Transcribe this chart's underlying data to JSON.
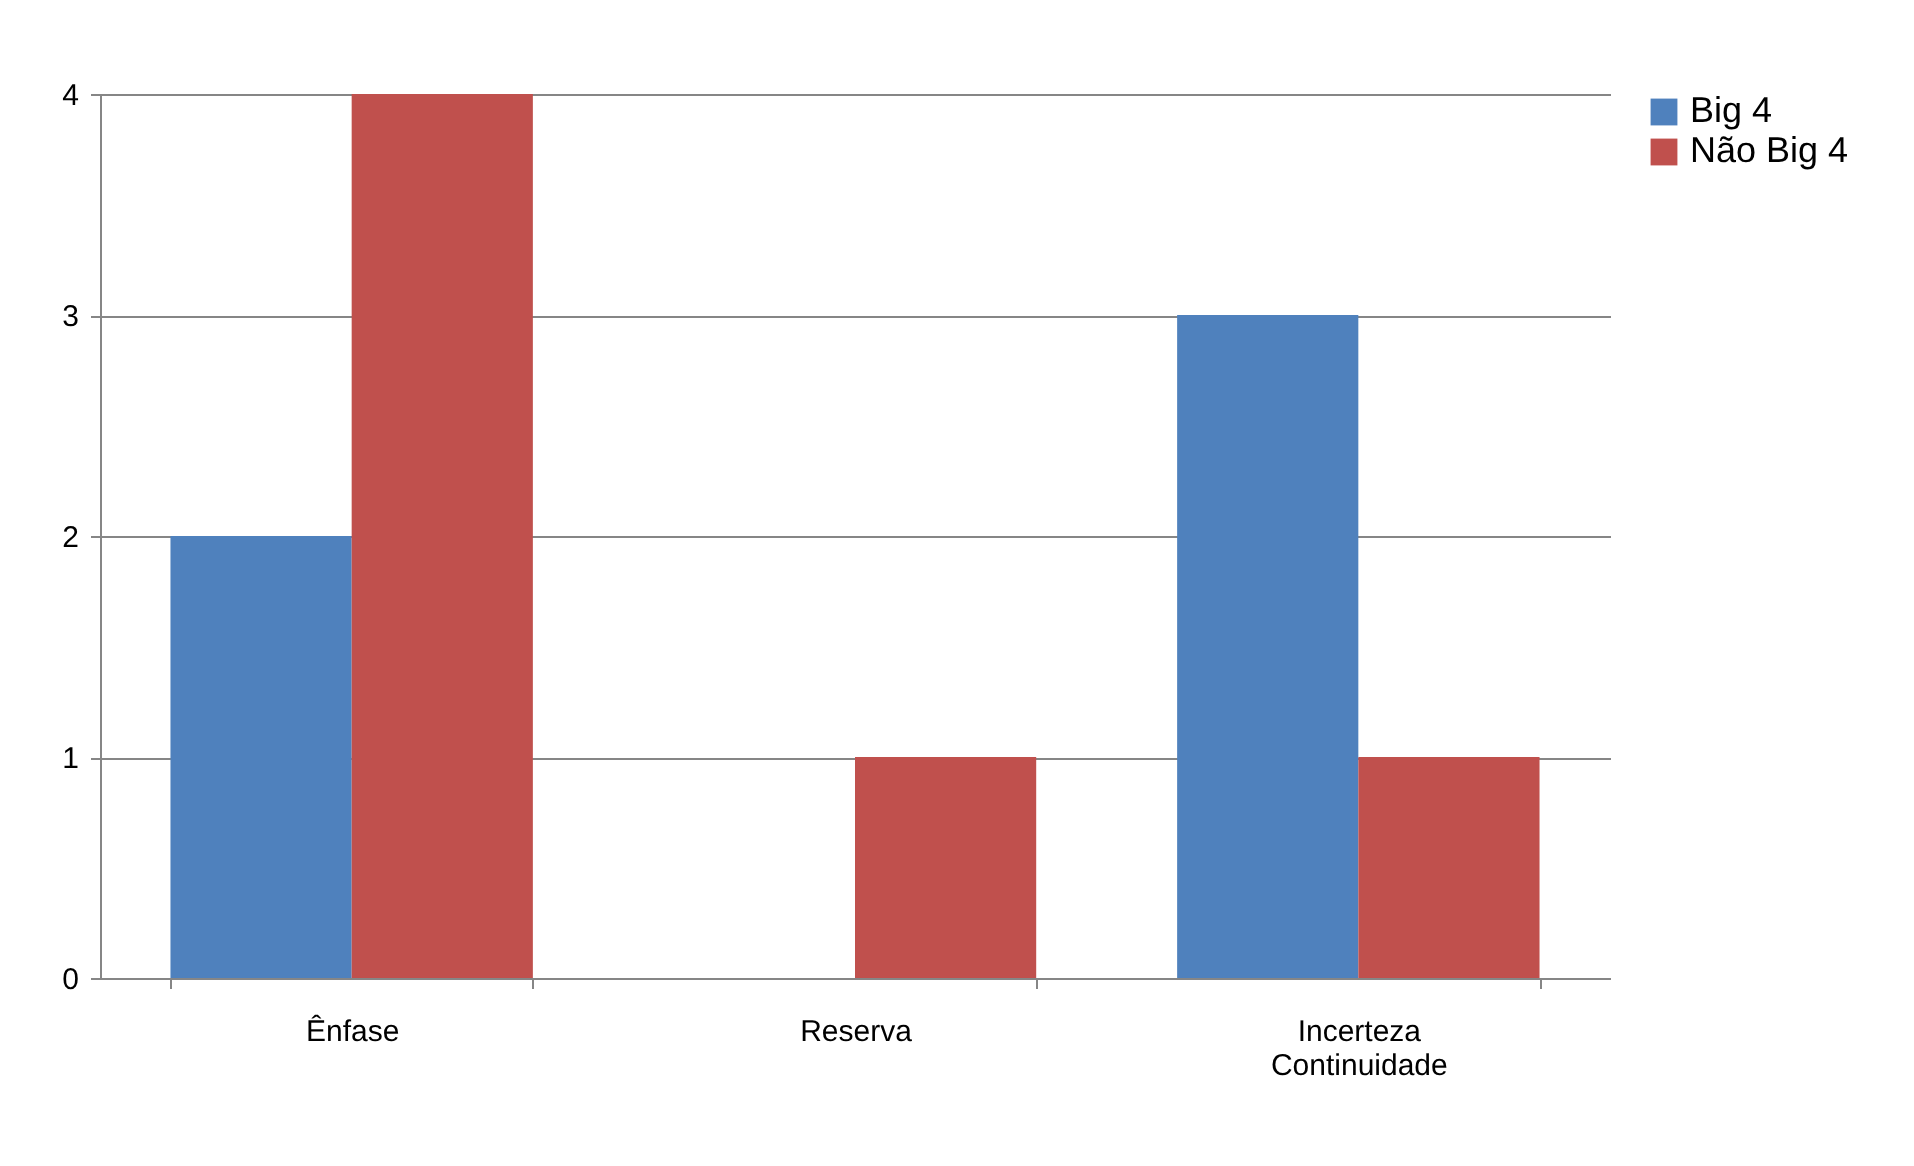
{
  "chart_data": {
    "type": "bar",
    "categories": [
      "Ênfase",
      "Reserva",
      "Incerteza Continuidade"
    ],
    "series": [
      {
        "name": "Big 4",
        "color": "#4f81bd",
        "values": [
          2,
          0,
          3
        ]
      },
      {
        "name": "Não Big 4",
        "color": "#c0504d",
        "values": [
          4,
          1,
          1
        ]
      }
    ],
    "ylim": [
      0,
      4
    ],
    "yticks": [
      0,
      1,
      2,
      3,
      4
    ],
    "grid": "y",
    "legend": "right"
  }
}
